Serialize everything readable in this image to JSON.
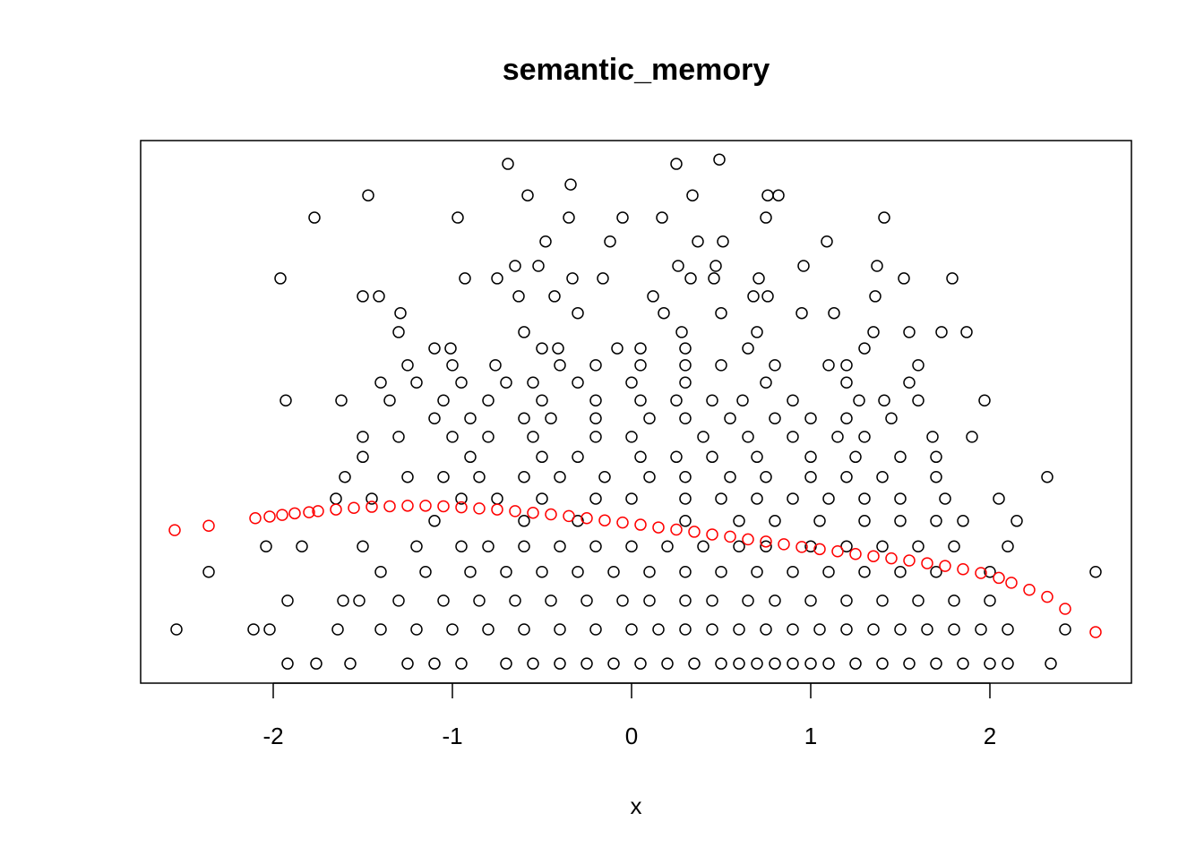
{
  "chart_data": {
    "type": "scatter",
    "title": "semantic_memory",
    "x_label": "x",
    "xlim": [
      -2.74,
      2.79
    ],
    "xticks": [
      -2,
      -1,
      0,
      1,
      2
    ],
    "ylim": [
      0,
      100
    ],
    "series": [
      {
        "color": "#000000",
        "x": [
          -1.92,
          -1.76,
          -1.57,
          -1.25,
          -1.1,
          -0.95,
          -0.7,
          -0.55,
          -0.4,
          -0.25,
          -0.1,
          0.05,
          0.2,
          0.35,
          0.5,
          0.6,
          0.7,
          0.8,
          0.9,
          1.0,
          1.1,
          1.25,
          1.4,
          1.55,
          1.7,
          1.85,
          2.0,
          2.1,
          2.34,
          -2.54,
          -2.11,
          -2.02,
          -1.64,
          -1.4,
          -1.2,
          -1.0,
          -0.8,
          -0.6,
          -0.4,
          -0.2,
          0.0,
          0.15,
          0.3,
          0.45,
          0.6,
          0.75,
          0.9,
          1.05,
          1.2,
          1.35,
          1.5,
          1.65,
          1.8,
          1.95,
          2.1,
          2.42,
          -1.92,
          -1.61,
          -1.52,
          -1.3,
          -1.05,
          -0.85,
          -0.65,
          -0.45,
          -0.25,
          -0.05,
          0.1,
          0.3,
          0.45,
          0.65,
          0.8,
          1.0,
          1.2,
          1.4,
          1.6,
          1.8,
          2.0,
          -2.36,
          -1.4,
          -1.15,
          -0.9,
          -0.7,
          -0.5,
          -0.3,
          -0.1,
          0.1,
          0.3,
          0.5,
          0.7,
          0.9,
          1.1,
          1.3,
          1.5,
          1.7,
          2.0,
          2.59,
          -2.04,
          -1.84,
          -1.5,
          -1.2,
          -0.95,
          -0.8,
          -0.6,
          -0.4,
          -0.2,
          0.0,
          0.2,
          0.4,
          0.6,
          0.75,
          1.0,
          1.2,
          1.4,
          1.6,
          1.8,
          2.1,
          -1.1,
          -0.6,
          -0.3,
          0.3,
          0.6,
          0.8,
          1.05,
          1.3,
          1.5,
          1.7,
          1.85,
          2.15,
          -1.65,
          -1.45,
          -0.95,
          -0.75,
          -0.5,
          -0.2,
          0.0,
          0.3,
          0.5,
          0.7,
          0.9,
          1.1,
          1.3,
          1.5,
          1.75,
          2.05,
          -1.6,
          -1.25,
          -1.05,
          -0.85,
          -0.6,
          -0.4,
          -0.15,
          0.1,
          0.3,
          0.55,
          0.75,
          1.0,
          1.2,
          1.4,
          1.7,
          2.32,
          -1.5,
          -0.9,
          -0.5,
          -0.3,
          0.05,
          0.25,
          0.45,
          0.7,
          1.0,
          1.25,
          1.5,
          1.7,
          -1.5,
          -1.3,
          -1.0,
          -0.8,
          -0.55,
          -0.2,
          0.0,
          0.4,
          0.65,
          0.9,
          1.15,
          1.3,
          1.68,
          1.9,
          -1.1,
          -0.9,
          -0.6,
          -0.45,
          -0.2,
          0.1,
          0.3,
          0.55,
          0.8,
          1.0,
          1.2,
          1.45,
          -1.93,
          -1.62,
          -1.35,
          -1.05,
          -0.8,
          -0.5,
          -0.2,
          0.05,
          0.25,
          0.45,
          0.62,
          0.9,
          1.27,
          1.41,
          1.6,
          1.97,
          -1.4,
          -1.2,
          -0.95,
          -0.7,
          -0.55,
          -0.3,
          0.0,
          0.3,
          0.75,
          1.2,
          1.55,
          -1.25,
          -1.0,
          -0.76,
          -0.4,
          -0.2,
          0.05,
          0.3,
          0.5,
          0.8,
          1.1,
          1.2,
          1.6,
          -1.1,
          -1.01,
          -0.5,
          -0.41,
          -0.08,
          0.05,
          0.3,
          0.65,
          1.3,
          -1.3,
          -0.6,
          0.28,
          0.7,
          1.35,
          1.55,
          1.73,
          1.87,
          -1.29,
          -0.3,
          0.18,
          0.5,
          0.95,
          1.13,
          -1.5,
          -1.41,
          -0.63,
          -0.43,
          0.12,
          0.68,
          0.76,
          1.36,
          -1.96,
          -0.93,
          -0.75,
          -0.33,
          -0.16,
          0.33,
          0.46,
          0.71,
          1.52,
          1.79,
          -0.65,
          -0.52,
          0.26,
          0.47,
          0.96,
          1.37,
          -0.48,
          -0.12,
          0.37,
          0.51,
          1.09,
          -1.77,
          -0.97,
          -0.35,
          -0.05,
          0.17,
          0.75,
          1.41,
          -1.47,
          -0.58,
          0.34,
          0.76,
          -0.69,
          -0.34,
          0.25,
          0.49,
          0.82
        ],
        "values": [
          3.6,
          3.6,
          3.6,
          3.6,
          3.6,
          3.6,
          3.6,
          3.6,
          3.6,
          3.6,
          3.6,
          3.6,
          3.6,
          3.6,
          3.6,
          3.6,
          3.6,
          3.6,
          3.6,
          3.6,
          3.6,
          3.6,
          3.6,
          3.6,
          3.6,
          3.6,
          3.6,
          3.6,
          3.6,
          9.9,
          9.9,
          9.9,
          9.9,
          9.9,
          9.9,
          9.9,
          9.9,
          9.9,
          9.9,
          9.9,
          9.9,
          9.9,
          9.9,
          9.9,
          9.9,
          9.9,
          9.9,
          9.9,
          9.9,
          9.9,
          9.9,
          9.9,
          9.9,
          9.9,
          9.9,
          9.9,
          15.2,
          15.2,
          15.2,
          15.2,
          15.2,
          15.2,
          15.2,
          15.2,
          15.2,
          15.2,
          15.2,
          15.2,
          15.2,
          15.2,
          15.2,
          15.2,
          15.2,
          15.2,
          15.2,
          15.2,
          15.2,
          20.5,
          20.5,
          20.5,
          20.5,
          20.5,
          20.5,
          20.5,
          20.5,
          20.5,
          20.5,
          20.5,
          20.5,
          20.5,
          20.5,
          20.5,
          20.5,
          20.5,
          20.5,
          20.5,
          25.2,
          25.2,
          25.2,
          25.2,
          25.2,
          25.2,
          25.2,
          25.2,
          25.2,
          25.2,
          25.2,
          25.2,
          25.2,
          25.2,
          25.2,
          25.2,
          25.2,
          25.2,
          25.2,
          25.2,
          29.9,
          29.9,
          29.9,
          29.9,
          29.9,
          29.9,
          29.9,
          29.9,
          29.9,
          29.9,
          29.9,
          29.9,
          34.0,
          34.0,
          34.0,
          34.0,
          34.0,
          34.0,
          34.0,
          34.0,
          34.0,
          34.0,
          34.0,
          34.0,
          34.0,
          34.0,
          34.0,
          34.0,
          38.0,
          38.0,
          38.0,
          38.0,
          38.0,
          38.0,
          38.0,
          38.0,
          38.0,
          38.0,
          38.0,
          38.0,
          38.0,
          38.0,
          38.0,
          38.0,
          41.7,
          41.7,
          41.7,
          41.7,
          41.7,
          41.7,
          41.7,
          41.7,
          41.7,
          41.7,
          41.7,
          41.7,
          45.4,
          45.4,
          45.4,
          45.4,
          45.4,
          45.4,
          45.4,
          45.4,
          45.4,
          45.4,
          45.4,
          45.4,
          45.4,
          45.4,
          48.8,
          48.8,
          48.8,
          48.8,
          48.8,
          48.8,
          48.8,
          48.8,
          48.8,
          48.8,
          48.8,
          48.8,
          52.1,
          52.1,
          52.1,
          52.1,
          52.1,
          52.1,
          52.1,
          52.1,
          52.1,
          52.1,
          52.1,
          52.1,
          52.1,
          52.1,
          52.1,
          52.1,
          55.4,
          55.4,
          55.4,
          55.4,
          55.4,
          55.4,
          55.4,
          55.4,
          55.4,
          55.4,
          55.4,
          58.6,
          58.6,
          58.6,
          58.6,
          58.6,
          58.6,
          58.6,
          58.6,
          58.6,
          58.6,
          58.6,
          58.6,
          61.7,
          61.7,
          61.7,
          61.7,
          61.7,
          61.7,
          61.7,
          61.7,
          61.7,
          64.7,
          64.7,
          64.7,
          64.7,
          64.7,
          64.7,
          64.7,
          64.7,
          68.2,
          68.2,
          68.2,
          68.2,
          68.2,
          68.2,
          71.3,
          71.3,
          71.3,
          71.3,
          71.3,
          71.3,
          71.3,
          71.3,
          74.6,
          74.6,
          74.6,
          74.6,
          74.6,
          74.6,
          74.6,
          74.6,
          74.6,
          74.6,
          76.9,
          76.9,
          76.9,
          76.9,
          76.9,
          76.9,
          81.4,
          81.4,
          81.4,
          81.4,
          81.4,
          85.8,
          85.8,
          85.8,
          85.8,
          85.8,
          85.8,
          85.8,
          89.9,
          89.9,
          89.9,
          89.9,
          95.7,
          91.9,
          95.7,
          96.5,
          89.9
        ]
      },
      {
        "color": "#ff0000",
        "x": [
          -2.55,
          -2.36,
          -2.1,
          -2.02,
          -1.95,
          -1.88,
          -1.8,
          -1.75,
          -1.65,
          -1.55,
          -1.45,
          -1.35,
          -1.25,
          -1.15,
          -1.05,
          -0.95,
          -0.85,
          -0.75,
          -0.65,
          -0.55,
          -0.45,
          -0.35,
          -0.25,
          -0.15,
          -0.05,
          0.05,
          0.15,
          0.25,
          0.35,
          0.45,
          0.55,
          0.65,
          0.75,
          0.85,
          0.95,
          1.05,
          1.15,
          1.25,
          1.35,
          1.45,
          1.55,
          1.65,
          1.75,
          1.85,
          1.95,
          2.05,
          2.12,
          2.22,
          2.32,
          2.42,
          2.59
        ],
        "values": [
          28.2,
          29.0,
          30.4,
          30.7,
          31.0,
          31.3,
          31.5,
          31.7,
          32.0,
          32.3,
          32.5,
          32.6,
          32.7,
          32.7,
          32.6,
          32.4,
          32.2,
          32.0,
          31.7,
          31.4,
          31.1,
          30.8,
          30.4,
          30.0,
          29.6,
          29.2,
          28.7,
          28.3,
          27.9,
          27.4,
          27.0,
          26.5,
          26.1,
          25.6,
          25.1,
          24.7,
          24.3,
          23.8,
          23.4,
          23.0,
          22.6,
          22.1,
          21.6,
          21.0,
          20.3,
          19.4,
          18.5,
          17.2,
          15.9,
          13.7,
          9.4
        ]
      }
    ]
  }
}
